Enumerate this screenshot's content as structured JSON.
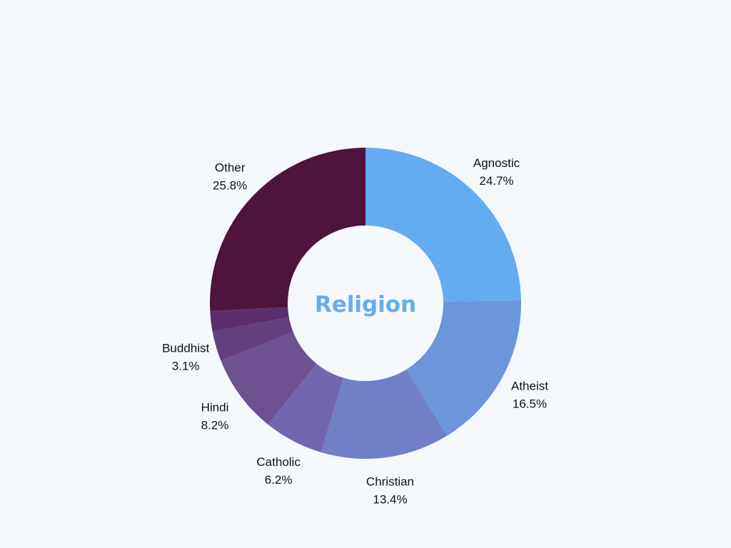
{
  "chart_data": {
    "type": "pie",
    "variant": "donut",
    "title": "Religion",
    "slices": [
      {
        "label": "Agnostic",
        "value": 24.7,
        "value_label": "24.7%",
        "color": "#63acf2"
      },
      {
        "label": "Atheist",
        "value": 16.5,
        "value_label": "16.5%",
        "color": "#6b96dc"
      },
      {
        "label": "Christian",
        "value": 13.4,
        "value_label": "13.4%",
        "color": "#717fc6"
      },
      {
        "label": "Catholic",
        "value": 6.2,
        "value_label": "6.2%",
        "color": "#7366b0"
      },
      {
        "label": "Hindi",
        "value": 8.2,
        "value_label": "8.2%",
        "color": "#6d5190"
      },
      {
        "label": "Buddhist",
        "value": 3.1,
        "value_label": "3.1%",
        "color": "#633f7c"
      },
      {
        "label": "",
        "value": 2.1,
        "value_label": "",
        "color": "#5a2f6a"
      },
      {
        "label": "Other",
        "value": 25.8,
        "value_label": "25.8%",
        "color": "#4e143b"
      }
    ],
    "start_angle_deg": 0,
    "direction": "clockwise"
  },
  "colors": {
    "background": "#f5f9fd",
    "title": "#63acf2",
    "label_text": "#111111"
  }
}
